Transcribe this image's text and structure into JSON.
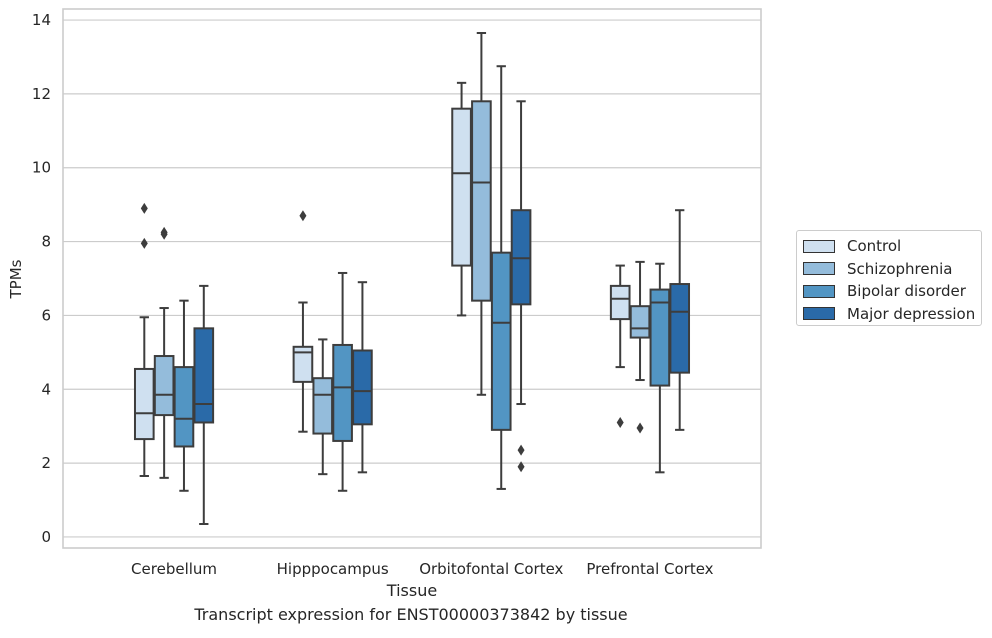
{
  "chart_data": {
    "type": "boxplot",
    "title": "",
    "xlabel": "Tissue",
    "ylabel": "TPMs",
    "caption": "Transcript expression for ENST00000373842 by tissue",
    "ylim": [
      -0.3,
      14.3
    ],
    "yticks": [
      0,
      2,
      4,
      6,
      8,
      10,
      12,
      14
    ],
    "grid": "horizontal",
    "legend_position": "right",
    "categories": [
      "Cerebellum",
      "Hipppocampus",
      "Orbitofontal Cortex",
      "Prefrontal Cortex"
    ],
    "series": [
      {
        "name": "Control",
        "color": "#cfe0f0",
        "boxes": [
          {
            "whislo": 1.65,
            "q1": 2.65,
            "med": 3.35,
            "q3": 4.55,
            "whishi": 5.95,
            "fliers": [
              7.95,
              8.9
            ]
          },
          {
            "whislo": 2.85,
            "q1": 4.2,
            "med": 5.0,
            "q3": 5.15,
            "whishi": 6.35,
            "fliers": [
              8.7
            ]
          },
          {
            "whislo": 6.0,
            "q1": 7.35,
            "med": 9.85,
            "q3": 11.6,
            "whishi": 12.3,
            "fliers": []
          },
          {
            "whislo": 4.6,
            "q1": 5.9,
            "med": 6.45,
            "q3": 6.8,
            "whishi": 7.35,
            "fliers": [
              3.1
            ]
          }
        ]
      },
      {
        "name": "Schizophrenia",
        "color": "#94bcdb",
        "boxes": [
          {
            "whislo": 1.6,
            "q1": 3.3,
            "med": 3.85,
            "q3": 4.9,
            "whishi": 6.2,
            "fliers": [
              8.2,
              8.25
            ]
          },
          {
            "whislo": 1.7,
            "q1": 2.8,
            "med": 3.85,
            "q3": 4.3,
            "whishi": 5.35,
            "fliers": []
          },
          {
            "whislo": 3.85,
            "q1": 6.4,
            "med": 9.6,
            "q3": 11.8,
            "whishi": 13.65,
            "fliers": []
          },
          {
            "whislo": 4.25,
            "q1": 5.4,
            "med": 5.65,
            "q3": 6.25,
            "whishi": 7.45,
            "fliers": [
              2.95
            ]
          }
        ]
      },
      {
        "name": "Bipolar disorder",
        "color": "#5295c3",
        "boxes": [
          {
            "whislo": 1.25,
            "q1": 2.45,
            "med": 3.2,
            "q3": 4.6,
            "whishi": 6.4,
            "fliers": []
          },
          {
            "whislo": 1.25,
            "q1": 2.6,
            "med": 4.05,
            "q3": 5.2,
            "whishi": 7.15,
            "fliers": []
          },
          {
            "whislo": 1.3,
            "q1": 2.9,
            "med": 5.8,
            "q3": 7.7,
            "whishi": 12.75,
            "fliers": []
          },
          {
            "whislo": 1.75,
            "q1": 4.1,
            "med": 6.35,
            "q3": 6.7,
            "whishi": 7.4,
            "fliers": []
          }
        ]
      },
      {
        "name": "Major depression",
        "color": "#2a6aa8",
        "boxes": [
          {
            "whislo": 0.35,
            "q1": 3.1,
            "med": 3.6,
            "q3": 5.65,
            "whishi": 6.8,
            "fliers": []
          },
          {
            "whislo": 1.75,
            "q1": 3.05,
            "med": 3.95,
            "q3": 5.05,
            "whishi": 6.9,
            "fliers": []
          },
          {
            "whislo": 3.6,
            "q1": 6.3,
            "med": 7.55,
            "q3": 8.85,
            "whishi": 11.8,
            "fliers": [
              1.9,
              2.35
            ]
          },
          {
            "whislo": 2.9,
            "q1": 4.45,
            "med": 6.1,
            "q3": 6.85,
            "whishi": 8.85,
            "fliers": []
          }
        ]
      }
    ]
  }
}
